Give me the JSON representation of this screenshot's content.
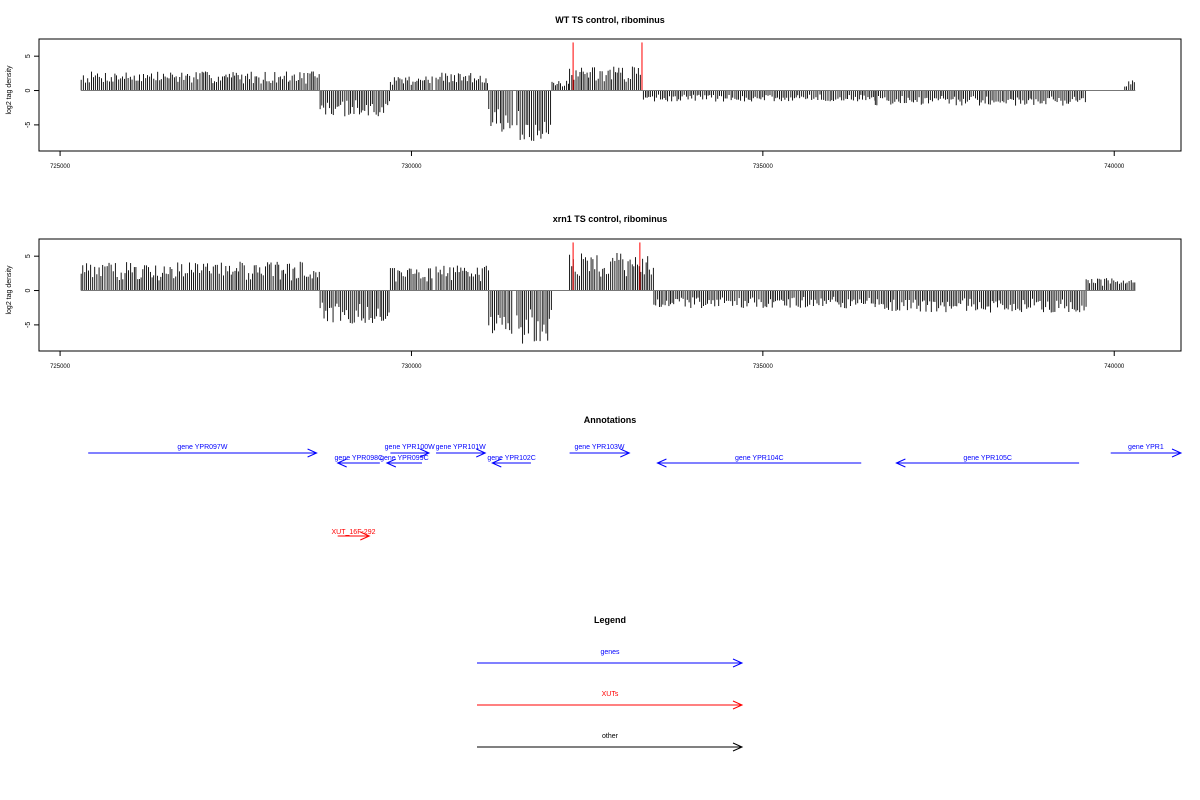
{
  "chart_data": [
    {
      "type": "bar",
      "title": "WT TS control, ribominus",
      "ylabel": "log2 tag density",
      "xlabel": "",
      "xlim": [
        724700,
        740950
      ],
      "ylim": [
        -8.8,
        7.5
      ],
      "yticks": [
        -5,
        0,
        5
      ],
      "xticks": [
        725000,
        730000,
        735000,
        740000
      ],
      "baseline": [
        725300,
        740300
      ],
      "segments": [
        {
          "start": 725300,
          "end": 728700,
          "sign": 1,
          "amp": 2.8
        },
        {
          "start": 728700,
          "end": 729700,
          "sign": -1,
          "amp": 3.8
        },
        {
          "start": 729700,
          "end": 730300,
          "sign": 1,
          "amp": 2.2
        },
        {
          "start": 730350,
          "end": 731100,
          "sign": 1,
          "amp": 2.6
        },
        {
          "start": 731100,
          "end": 731450,
          "sign": -1,
          "amp": 6.0
        },
        {
          "start": 731500,
          "end": 732000,
          "sign": -1,
          "amp": 7.5
        },
        {
          "start": 732000,
          "end": 732250,
          "sign": 1,
          "amp": 1.6
        },
        {
          "start": 732250,
          "end": 733300,
          "sign": 1,
          "amp": 3.5
        },
        {
          "start": 733300,
          "end": 736600,
          "sign": -1,
          "amp": 1.6
        },
        {
          "start": 736600,
          "end": 739600,
          "sign": -1,
          "amp": 2.2
        },
        {
          "start": 740150,
          "end": 740300,
          "sign": 1,
          "amp": 1.5
        }
      ],
      "highlights": [
        {
          "x": 732300,
          "value": 7.0
        },
        {
          "x": 733280,
          "value": 7.0
        }
      ]
    },
    {
      "type": "bar",
      "title": "xrn1 TS control, ribominus",
      "ylabel": "log2 tag density",
      "xlabel": "",
      "xlim": [
        724700,
        740950
      ],
      "ylim": [
        -8.8,
        7.5
      ],
      "yticks": [
        -5,
        0,
        5
      ],
      "xticks": [
        725000,
        730000,
        735000,
        740000
      ],
      "baseline": [
        725300,
        740300
      ],
      "segments": [
        {
          "start": 725300,
          "end": 728700,
          "sign": 1,
          "amp": 4.2
        },
        {
          "start": 728700,
          "end": 729700,
          "sign": -1,
          "amp": 4.8
        },
        {
          "start": 729700,
          "end": 730300,
          "sign": 1,
          "amp": 3.6
        },
        {
          "start": 730350,
          "end": 731100,
          "sign": 1,
          "amp": 3.8
        },
        {
          "start": 731100,
          "end": 731450,
          "sign": -1,
          "amp": 6.3
        },
        {
          "start": 731500,
          "end": 732000,
          "sign": -1,
          "amp": 7.8
        },
        {
          "start": 732250,
          "end": 733450,
          "sign": 1,
          "amp": 5.5
        },
        {
          "start": 733450,
          "end": 736600,
          "sign": -1,
          "amp": 2.6
        },
        {
          "start": 736600,
          "end": 739600,
          "sign": -1,
          "amp": 3.2
        },
        {
          "start": 739600,
          "end": 740300,
          "sign": 1,
          "amp": 1.8
        }
      ],
      "highlights": [
        {
          "x": 732300,
          "value": 7.0
        },
        {
          "x": 733250,
          "value": 7.0
        }
      ]
    }
  ],
  "annotations": {
    "title": "Annotations",
    "features": [
      {
        "label": "gene YPR097W",
        "start": 725400,
        "end": 728650,
        "strand": "+",
        "row": 0,
        "kind": "gene"
      },
      {
        "label": "gene YPR098C",
        "start": 728950,
        "end": 729550,
        "strand": "-",
        "row": 1,
        "kind": "gene"
      },
      {
        "label": "gene YPR099C",
        "start": 729650,
        "end": 730150,
        "strand": "-",
        "row": 1,
        "kind": "gene"
      },
      {
        "label": "gene YPR100W",
        "start": 729700,
        "end": 730250,
        "strand": "+",
        "row": 0,
        "kind": "gene"
      },
      {
        "label": "gene YPR101W",
        "start": 730350,
        "end": 731050,
        "strand": "+",
        "row": 0,
        "kind": "gene"
      },
      {
        "label": "gene YPR102C",
        "start": 731150,
        "end": 731700,
        "strand": "-",
        "row": 1,
        "kind": "gene"
      },
      {
        "label": "gene YPR103W",
        "start": 732250,
        "end": 733100,
        "strand": "+",
        "row": 0,
        "kind": "gene"
      },
      {
        "label": "gene YPR104C",
        "start": 733500,
        "end": 736400,
        "strand": "-",
        "row": 1,
        "kind": "gene"
      },
      {
        "label": "gene YPR105C",
        "start": 736900,
        "end": 739500,
        "strand": "-",
        "row": 1,
        "kind": "gene"
      },
      {
        "label": "gene YPR1",
        "start": 739950,
        "end": 740950,
        "strand": "+",
        "row": 0,
        "kind": "gene"
      },
      {
        "label": "XUT_16F-292",
        "start": 728950,
        "end": 729400,
        "strand": "+",
        "row": 2,
        "kind": "xut"
      }
    ]
  },
  "legend": {
    "title": "Legend",
    "items": [
      {
        "label": "genes",
        "color": "#0000ff"
      },
      {
        "label": "XUTs",
        "color": "#ff0000"
      },
      {
        "label": "other",
        "color": "#000000"
      }
    ]
  },
  "colors": {
    "bars": "#000000",
    "highlight": "#ff0000",
    "baseline": "#777777",
    "gene": "#0000ff",
    "xut": "#ff0000",
    "other": "#000000"
  }
}
